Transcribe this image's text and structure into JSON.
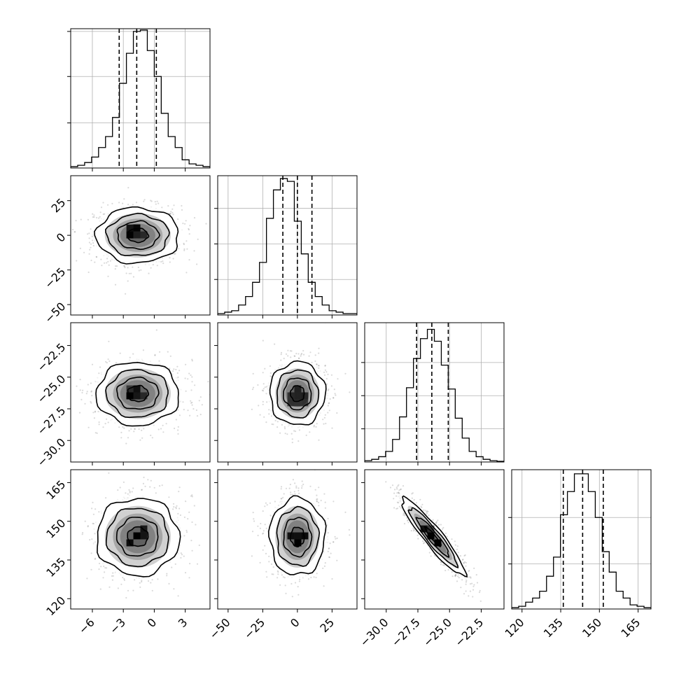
{
  "chart_data": {
    "type": "corner",
    "parameters": [
      {
        "range": [
          -8.1,
          5.4
        ],
        "ticks": [
          {
            "v": -6,
            "t": "−6"
          },
          {
            "v": -3,
            "t": "−3"
          },
          {
            "v": 0,
            "t": "0"
          },
          {
            "v": 3,
            "t": "3"
          }
        ],
        "quantiles": [
          -3.4,
          -1.7,
          0.2
        ],
        "center": -1.6,
        "sigma": 2.0,
        "hist_counts": [
          0.01,
          0.02,
          0.04,
          0.08,
          0.15,
          0.23,
          0.37,
          0.62,
          0.84,
          1.0,
          1.01,
          0.86,
          0.67,
          0.4,
          0.23,
          0.15,
          0.06,
          0.03,
          0.02,
          0.01
        ],
        "hist_grid": [
          0.33,
          0.67,
          1.0
        ],
        "hist_grid_ymax": 1.02
      },
      {
        "range": [
          -57.5,
          43.0
        ],
        "ticks": [
          {
            "v": -50,
            "t": "−50"
          },
          {
            "v": -25,
            "t": "−25"
          },
          {
            "v": 0,
            "t": "0"
          },
          {
            "v": 25,
            "t": "25"
          }
        ],
        "quantiles": [
          -10.5,
          0.0,
          10.5
        ],
        "center": 0.0,
        "sigma": 10.0,
        "hist_counts": [
          0.01,
          0.02,
          0.03,
          0.07,
          0.13,
          0.23,
          0.37,
          0.68,
          0.88,
          0.96,
          0.94,
          0.66,
          0.43,
          0.23,
          0.13,
          0.07,
          0.03,
          0.02,
          0.01,
          0.01
        ],
        "hist_grid": [
          0.25,
          0.5,
          0.75
        ],
        "hist_grid_ymax": 0.98
      },
      {
        "range": [
          -31.7,
          -20.7
        ],
        "ticks": [
          {
            "v": -30.0,
            "t": "−30.0"
          },
          {
            "v": -27.5,
            "t": "−27.5"
          },
          {
            "v": -25.0,
            "t": "−25.0"
          },
          {
            "v": -22.5,
            "t": "−22.5"
          }
        ],
        "quantiles": [
          -27.6,
          -26.4,
          -25.1
        ],
        "center": -26.3,
        "sigma": 1.25,
        "hist_counts": [
          0.01,
          0.02,
          0.04,
          0.08,
          0.17,
          0.34,
          0.56,
          0.78,
          0.93,
          1.0,
          0.91,
          0.73,
          0.55,
          0.33,
          0.18,
          0.08,
          0.04,
          0.02,
          0.01,
          0.005
        ],
        "hist_grid": [
          0.25,
          0.5,
          0.75
        ],
        "hist_grid_ymax": 1.05
      },
      {
        "range": [
          116.0,
          170.0
        ],
        "ticks": [
          {
            "v": 120,
            "t": "120"
          },
          {
            "v": 135,
            "t": "135"
          },
          {
            "v": 150,
            "t": "150"
          },
          {
            "v": 165,
            "t": "165"
          }
        ],
        "quantiles": [
          136.0,
          143.5,
          151.5
        ],
        "center": 144.0,
        "sigma": 7.5,
        "hist_counts": [
          0.01,
          0.02,
          0.05,
          0.08,
          0.13,
          0.24,
          0.38,
          0.69,
          0.86,
          0.99,
          0.99,
          0.86,
          0.67,
          0.42,
          0.27,
          0.13,
          0.08,
          0.03,
          0.02,
          0.01
        ],
        "hist_grid": [
          0.33,
          0.67
        ],
        "hist_grid_ymax": 1.02
      }
    ],
    "correlations": {
      "1-0": 0.0,
      "2-0": 0.0,
      "2-1": 0.0,
      "3-0": 0.0,
      "3-1": 0.0,
      "3-2": -0.93
    },
    "contour_levels_sigma": [
      0.5,
      1.0,
      1.5,
      2.0
    ],
    "scatter_color": "#555555",
    "density_color": "#000000"
  }
}
